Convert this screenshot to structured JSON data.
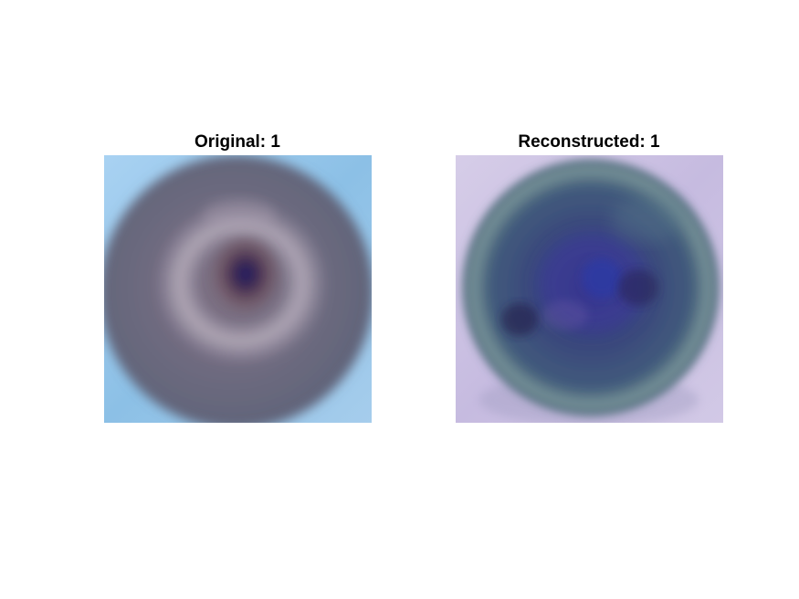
{
  "panels": [
    {
      "title": "Original: 1",
      "image": "original-donut-image",
      "colors": {
        "background": "#8cc0e6",
        "body": "#6f6a80",
        "highlight": "#c8bccb",
        "center": "#2b2058"
      }
    },
    {
      "title": "Reconstructed: 1",
      "image": "reconstructed-donut-image",
      "colors": {
        "background": "#c9bfe0",
        "body": "#3c4c74",
        "highlight": "#7f9aa6",
        "center": "#2a2a82"
      }
    }
  ]
}
